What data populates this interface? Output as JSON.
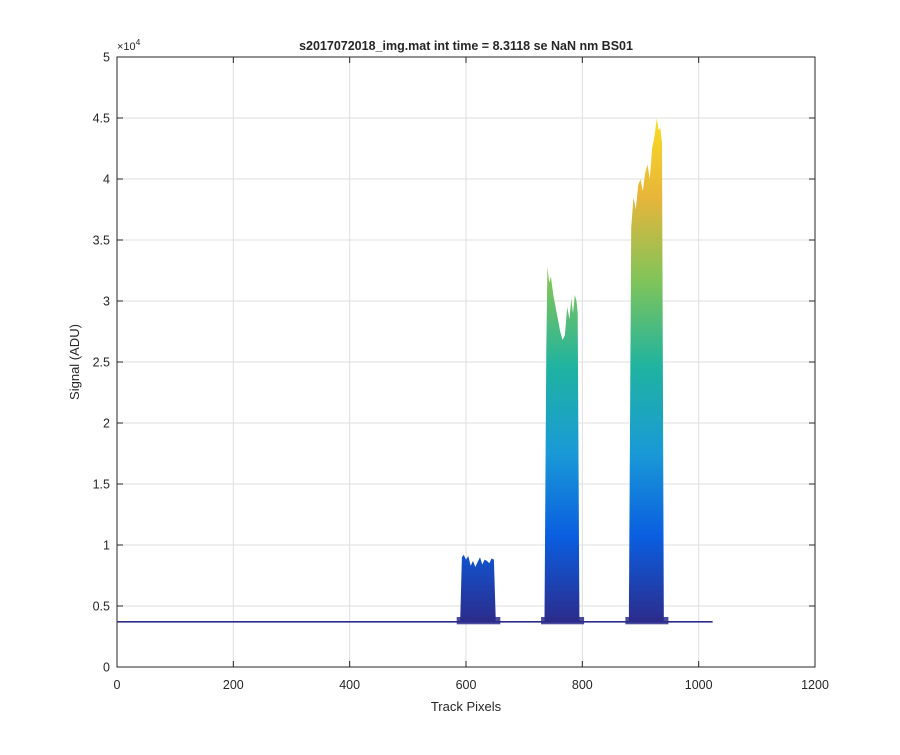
{
  "chart_data": {
    "type": "area",
    "title": "s2017072018_img.mat int time = 8.3118 se  NaN nm BS01",
    "xlabel": "Track Pixels",
    "ylabel": "Signal (ADU)",
    "exponent_label": "×10",
    "exponent_power": "4",
    "xlim": [
      0,
      1200
    ],
    "ylim": [
      0,
      5
    ],
    "y_multiplier": 10000,
    "xticks": [
      0,
      200,
      400,
      600,
      800,
      1000,
      1200
    ],
    "xtick_labels": [
      "0",
      "200",
      "400",
      "600",
      "800",
      "1000",
      "1200"
    ],
    "yticks": [
      0,
      0.5,
      1,
      1.5,
      2,
      2.5,
      3,
      3.5,
      4,
      4.5,
      5
    ],
    "ytick_labels": [
      "0",
      "0.5",
      "1",
      "1.5",
      "2",
      "2.5",
      "3",
      "3.5",
      "4",
      "4.5",
      "5"
    ],
    "grid": true,
    "colormap": [
      "#2c2c8c",
      "#0a5ee0",
      "#1a9ad6",
      "#1fb3a0",
      "#7fc45a",
      "#e8b53a",
      "#f9e021"
    ],
    "baseline": 0.37,
    "x_range": [
      1,
      1024
    ],
    "peaks": [
      {
        "x": [
          590,
          593,
          596,
          600,
          604,
          608,
          612,
          616,
          620,
          624,
          628,
          632,
          636,
          640,
          644,
          648,
          651
        ],
        "y": [
          0.38,
          0.9,
          0.92,
          0.88,
          0.91,
          0.83,
          0.87,
          0.82,
          0.86,
          0.9,
          0.84,
          0.88,
          0.87,
          0.85,
          0.89,
          0.88,
          0.4
        ]
      },
      {
        "x": [
          735,
          738,
          740,
          743,
          746,
          750,
          754,
          758,
          762,
          766,
          770,
          774,
          778,
          781,
          784,
          787,
          790,
          792,
          795
        ],
        "y": [
          0.4,
          2.6,
          3.28,
          3.15,
          3.2,
          3.05,
          2.95,
          2.85,
          2.75,
          2.68,
          2.72,
          2.95,
          2.85,
          3.02,
          2.9,
          3.05,
          3.0,
          2.9,
          0.42
        ]
      },
      {
        "x": [
          880,
          884,
          888,
          892,
          896,
          900,
          904,
          908,
          912,
          916,
          920,
          924,
          928,
          931,
          934,
          937,
          940
        ],
        "y": [
          0.45,
          3.6,
          3.85,
          3.75,
          3.95,
          4.0,
          3.9,
          4.05,
          4.12,
          4.0,
          4.25,
          4.35,
          4.5,
          4.4,
          4.42,
          4.3,
          0.45
        ]
      }
    ]
  }
}
